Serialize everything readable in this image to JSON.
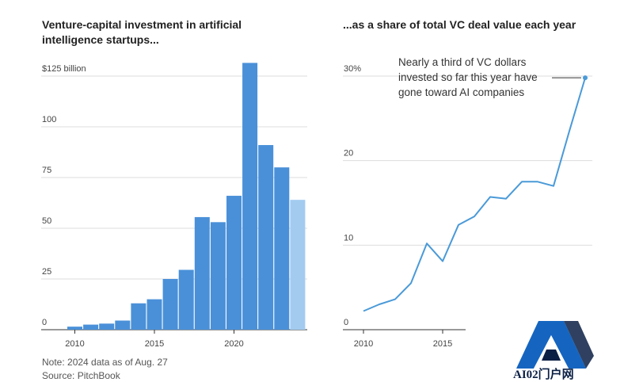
{
  "chart_data": [
    {
      "type": "bar",
      "title": "Venture-capital investment in artificial intelligence startups...",
      "categories": [
        "2010",
        "2011",
        "2012",
        "2013",
        "2014",
        "2015",
        "2016",
        "2017",
        "2018",
        "2019",
        "2020",
        "2021",
        "2022",
        "2023",
        "2024"
      ],
      "values": [
        1.5,
        2.5,
        3,
        4.5,
        13,
        15,
        25,
        29.5,
        55.5,
        53,
        66,
        131.5,
        91,
        80,
        64
      ],
      "partial_year": "2024",
      "ylim": [
        0,
        125
      ],
      "yticks": [
        0,
        25,
        50,
        75,
        100,
        125
      ],
      "ytick_labels": [
        "0",
        "25",
        "50",
        "75",
        "100",
        "$125 billion"
      ],
      "xtick_labels": [
        "2010",
        "2015",
        "2020"
      ],
      "xlabel": "",
      "ylabel": "",
      "grid": true
    },
    {
      "type": "line",
      "title": "...as a share of total VC deal value each year",
      "x": [
        2010,
        2011,
        2012,
        2013,
        2014,
        2015,
        2016,
        2017,
        2018,
        2019,
        2020,
        2021,
        2022,
        2023,
        2024
      ],
      "values": [
        2.2,
        3.0,
        3.6,
        5.5,
        10.2,
        8.1,
        12.4,
        13.4,
        15.7,
        15.5,
        17.5,
        17.5,
        17.0,
        23.5,
        29.8
      ],
      "ylim": [
        0,
        30
      ],
      "yticks": [
        0,
        10,
        20,
        30
      ],
      "ytick_labels": [
        "0",
        "10",
        "20",
        "30%"
      ],
      "xtick_labels": [
        "2010",
        "2015"
      ],
      "xlabel": "",
      "ylabel": "",
      "grid": true,
      "annotation": [
        "Nearly a third of VC dollars",
        "invested so far this year have",
        "gone toward AI companies"
      ]
    }
  ],
  "note": "Note: 2024 data as of Aug. 27",
  "source": "Source: PitchBook",
  "watermark_text": "AI02门户网",
  "colors": {
    "bar": "#4a90d9",
    "bar_partial": "#a3cbf0",
    "line": "#4a9ad8",
    "grid": "#dddddd",
    "axis": "#333333",
    "logo_blue": "#1565c0",
    "logo_dark": "#0a1f44"
  }
}
